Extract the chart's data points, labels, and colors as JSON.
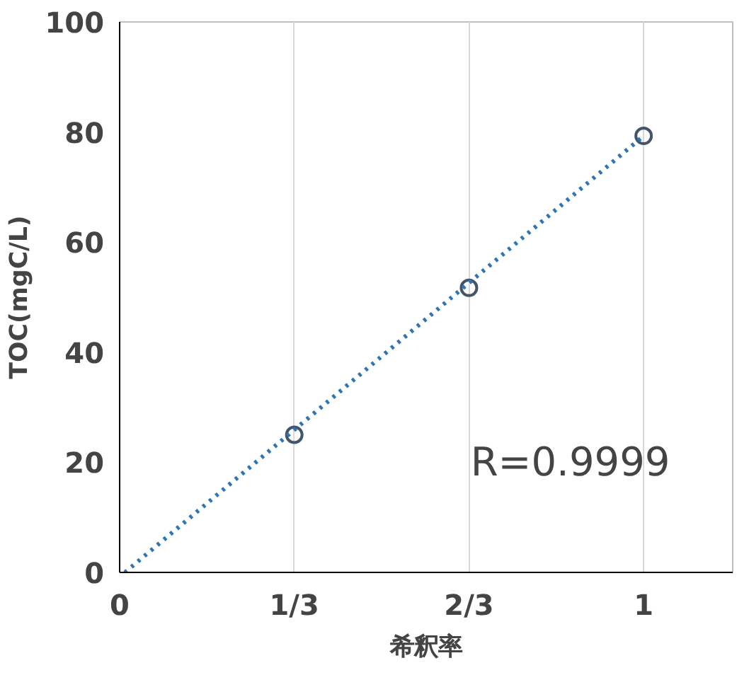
{
  "chart_data": {
    "type": "scatter",
    "xlabel": "希釈率",
    "ylabel": "TOC(mgC/L)",
    "xlim": [
      0,
      1.17
    ],
    "ylim": [
      0,
      100
    ],
    "xticks": [
      0,
      {
        "value": 0.3333,
        "label": "1/3"
      },
      {
        "value": 0.6667,
        "label": "2/3"
      },
      1
    ],
    "yticks": [
      0,
      20,
      40,
      60,
      80,
      100
    ],
    "grid": "x",
    "series": [
      {
        "marker": "circle",
        "color": "#44546a",
        "x": [
          0.3333,
          0.6667,
          1
        ],
        "values": [
          25,
          51.7,
          79.3
        ]
      },
      {
        "type": "line",
        "color": "#2e75b6",
        "line_style": "dotted",
        "x": [
          0.01,
          1
        ],
        "values": [
          0,
          79.3
        ]
      }
    ],
    "annotations": [
      "R=0.9999"
    ]
  }
}
